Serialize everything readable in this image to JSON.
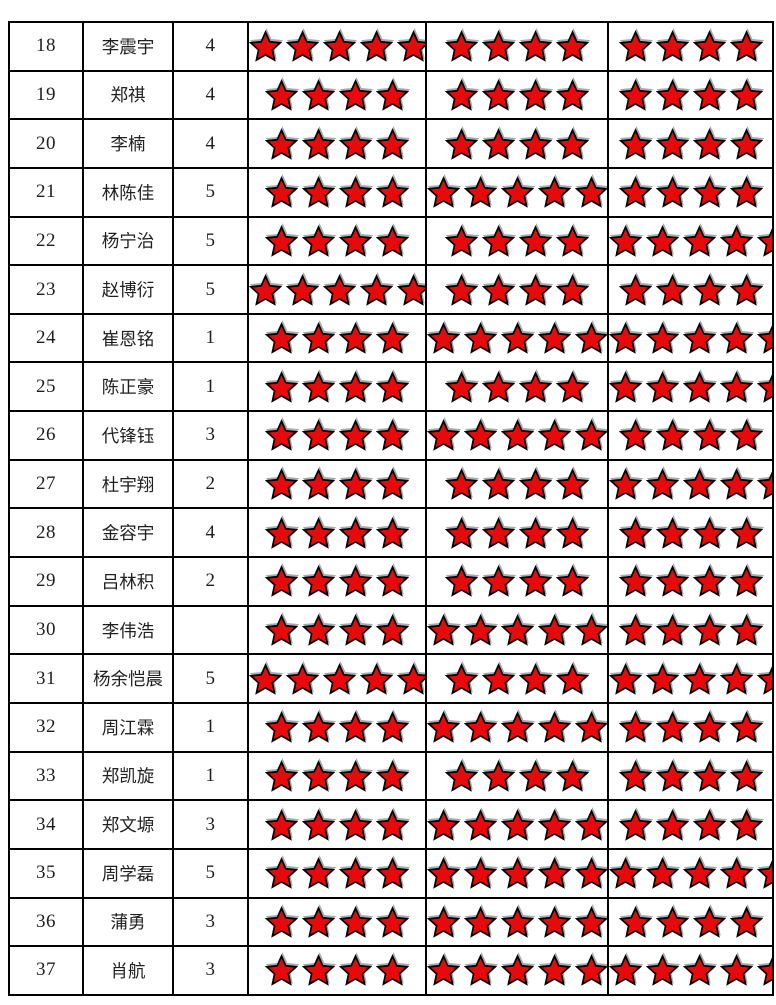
{
  "style": {
    "star_fill": "#e80a0a",
    "star_stroke": "#000000",
    "star_shadow": "#ababab",
    "border_color": "#000000",
    "text_color": "#1f1f1f",
    "background": "#ffffff"
  },
  "table": {
    "rows": [
      {
        "num": "18",
        "name": "李震宇",
        "score": "4",
        "stars": [
          5,
          4,
          4
        ]
      },
      {
        "num": "19",
        "name": "郑祺",
        "score": "4",
        "stars": [
          4,
          4,
          4
        ]
      },
      {
        "num": "20",
        "name": "李楠",
        "score": "4",
        "stars": [
          4,
          4,
          4
        ]
      },
      {
        "num": "21",
        "name": "林陈佳",
        "score": "5",
        "stars": [
          4,
          5,
          4
        ]
      },
      {
        "num": "22",
        "name": "杨宁治",
        "score": "5",
        "stars": [
          4,
          4,
          5
        ]
      },
      {
        "num": "23",
        "name": "赵博衍",
        "score": "5",
        "stars": [
          5,
          4,
          4
        ]
      },
      {
        "num": "24",
        "name": "崔恩铭",
        "score": "1",
        "stars": [
          4,
          5,
          5
        ]
      },
      {
        "num": "25",
        "name": "陈正豪",
        "score": "1",
        "stars": [
          4,
          4,
          5
        ]
      },
      {
        "num": "26",
        "name": "代锋钰",
        "score": "3",
        "stars": [
          4,
          5,
          4
        ]
      },
      {
        "num": "27",
        "name": "杜宇翔",
        "score": "2",
        "stars": [
          4,
          4,
          5
        ]
      },
      {
        "num": "28",
        "name": "金容宇",
        "score": "4",
        "stars": [
          4,
          4,
          4
        ]
      },
      {
        "num": "29",
        "name": "吕林积",
        "score": "2",
        "stars": [
          4,
          4,
          4
        ]
      },
      {
        "num": "30",
        "name": "李伟浩",
        "score": "",
        "stars": [
          4,
          5,
          4
        ]
      },
      {
        "num": "31",
        "name": "杨余恺晨",
        "score": "5",
        "stars": [
          5,
          4,
          5
        ]
      },
      {
        "num": "32",
        "name": "周江霖",
        "score": "1",
        "stars": [
          4,
          5,
          4
        ]
      },
      {
        "num": "33",
        "name": "郑凯旋",
        "score": "1",
        "stars": [
          4,
          4,
          4
        ]
      },
      {
        "num": "34",
        "name": "郑文塬",
        "score": "3",
        "stars": [
          4,
          5,
          4
        ]
      },
      {
        "num": "35",
        "name": "周学磊",
        "score": "5",
        "stars": [
          4,
          5,
          5
        ]
      },
      {
        "num": "36",
        "name": "蒲勇",
        "score": "3",
        "stars": [
          4,
          5,
          4
        ]
      },
      {
        "num": "37",
        "name": "肖航",
        "score": "3",
        "stars": [
          4,
          5,
          5
        ]
      }
    ]
  }
}
